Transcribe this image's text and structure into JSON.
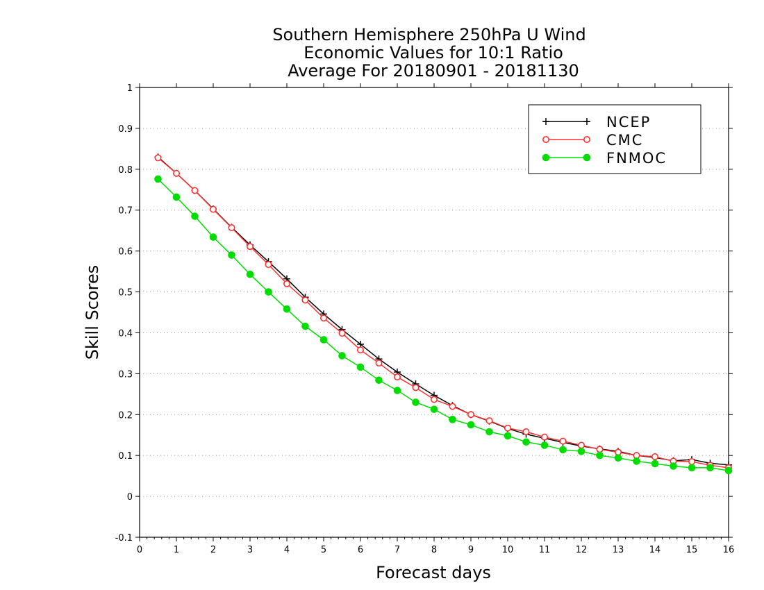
{
  "chart_data": {
    "type": "line",
    "title_lines": [
      "Southern Hemisphere 250hPa U Wind",
      "Economic Values for 10:1 Ratio",
      "Average For 20180901 - 20181130"
    ],
    "xlabel": "Forecast days",
    "ylabel": "Skill Scores",
    "xlim": [
      0,
      16
    ],
    "ylim": [
      -0.1,
      1
    ],
    "x_ticks": [
      0,
      1,
      2,
      3,
      4,
      5,
      6,
      7,
      8,
      9,
      10,
      11,
      12,
      13,
      14,
      15,
      16
    ],
    "y_ticks": [
      "-0.1",
      "0",
      "0.1",
      "0.2",
      "0.3",
      "0.4",
      "0.5",
      "0.6",
      "0.7",
      "0.8",
      "0.9",
      "1"
    ],
    "grid": "horizontal-dotted",
    "legend_position": "top-right",
    "x": [
      0.5,
      1,
      1.5,
      2,
      2.5,
      3,
      3.5,
      4,
      4.5,
      5,
      5.5,
      6,
      6.5,
      7,
      7.5,
      8,
      8.5,
      9,
      9.5,
      10,
      10.5,
      11,
      11.5,
      12,
      12.5,
      13,
      13.5,
      14,
      14.5,
      15,
      15.5,
      16
    ],
    "series": [
      {
        "name": "NCEP",
        "color": "#000000",
        "marker": "plus",
        "values": [
          0.83,
          0.79,
          0.748,
          0.703,
          0.658,
          0.615,
          0.574,
          0.532,
          0.487,
          0.446,
          0.408,
          0.372,
          0.336,
          0.304,
          0.275,
          0.247,
          0.222,
          0.2,
          0.184,
          0.166,
          0.152,
          0.142,
          0.132,
          0.123,
          0.116,
          0.11,
          0.1,
          0.095,
          0.087,
          0.09,
          0.081,
          0.077
        ]
      },
      {
        "name": "CMC",
        "color": "#ff3030",
        "marker": "open-circle",
        "values": [
          0.828,
          0.79,
          0.748,
          0.702,
          0.657,
          0.611,
          0.567,
          0.52,
          0.48,
          0.436,
          0.399,
          0.358,
          0.326,
          0.292,
          0.266,
          0.237,
          0.22,
          0.2,
          0.185,
          0.167,
          0.158,
          0.145,
          0.135,
          0.125,
          0.115,
          0.108,
          0.1,
          0.097,
          0.086,
          0.085,
          0.076,
          0.07
        ]
      },
      {
        "name": "FNMOC",
        "color": "#00dd00",
        "marker": "filled-circle",
        "values": [
          0.776,
          0.732,
          0.685,
          0.634,
          0.59,
          0.543,
          0.5,
          0.458,
          0.416,
          0.383,
          0.344,
          0.316,
          0.284,
          0.259,
          0.23,
          0.213,
          0.188,
          0.175,
          0.158,
          0.148,
          0.133,
          0.125,
          0.114,
          0.11,
          0.1,
          0.094,
          0.086,
          0.08,
          0.074,
          0.07,
          0.07,
          0.063
        ]
      }
    ]
  }
}
